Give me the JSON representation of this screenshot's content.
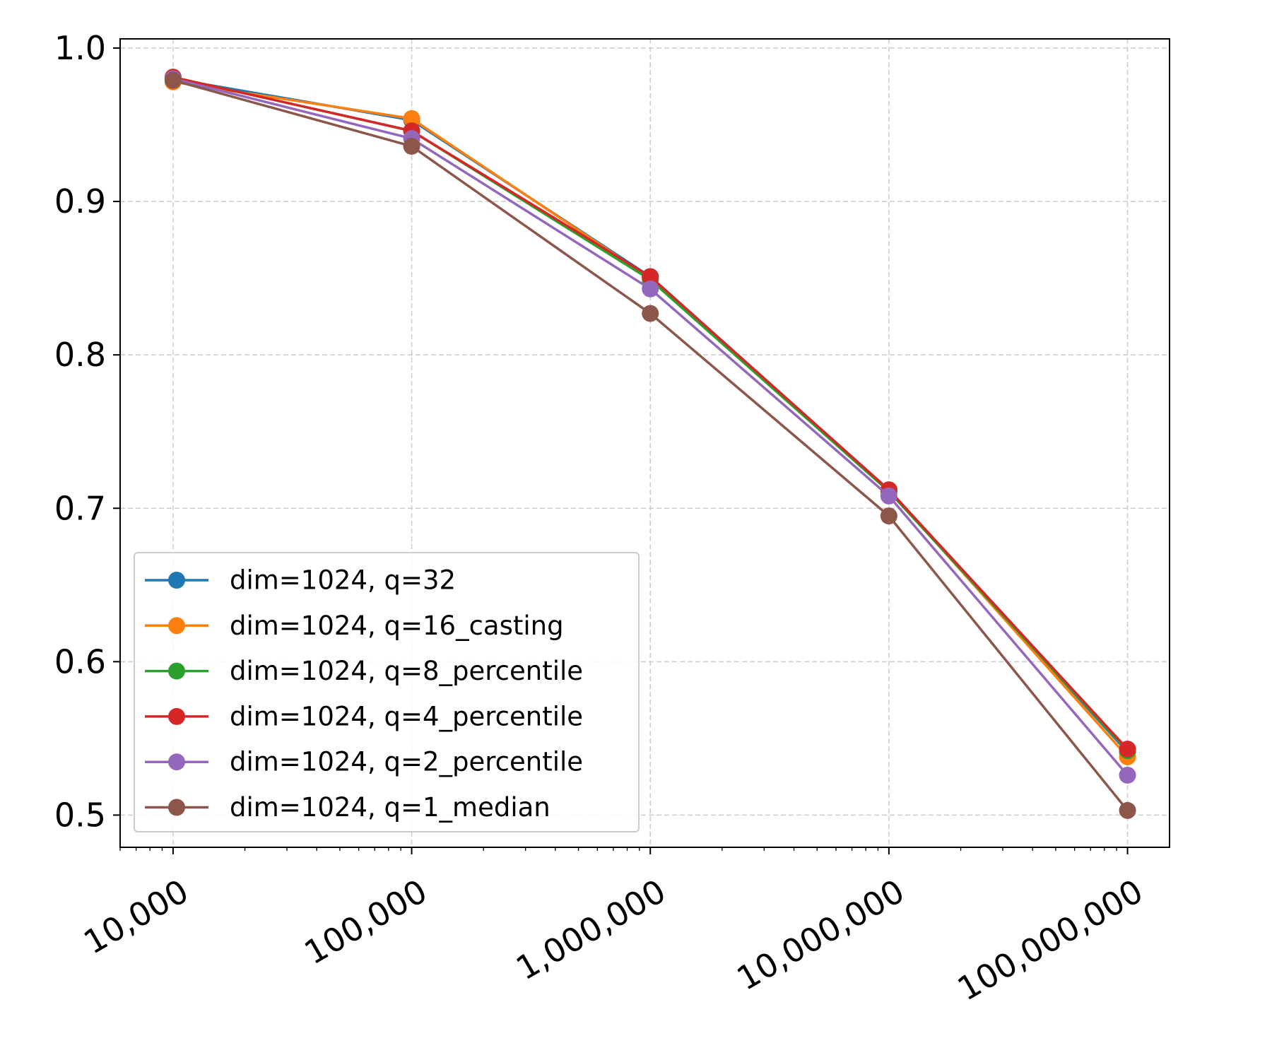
{
  "chart_data": {
    "type": "line",
    "x_scale": "log",
    "x": [
      10000,
      100000,
      1000000,
      10000000,
      100000000
    ],
    "x_tick_labels": [
      "10,000",
      "100,000",
      "1,000,000",
      "10,000,000",
      "100,000,000"
    ],
    "xlim": [
      6000,
      150000000
    ],
    "ylim": [
      0.479,
      1.006
    ],
    "y_ticks": [
      0.5,
      0.6,
      0.7,
      0.8,
      0.9,
      1.0
    ],
    "y_tick_labels": [
      "0.5",
      "0.6",
      "0.7",
      "0.8",
      "0.9",
      "1.0"
    ],
    "grid": true,
    "legend_position": "lower-left",
    "series": [
      {
        "name": "dim=1024, q=32",
        "color": "#1f77b4",
        "values": [
          0.98,
          0.953,
          0.851,
          0.712,
          0.541
        ]
      },
      {
        "name": "dim=1024, q=16_casting",
        "color": "#ff7f0e",
        "values": [
          0.978,
          0.954,
          0.85,
          0.712,
          0.538
        ]
      },
      {
        "name": "dim=1024, q=8_percentile",
        "color": "#2ca02c",
        "values": [
          0.981,
          0.946,
          0.849,
          0.711,
          0.542
        ]
      },
      {
        "name": "dim=1024, q=4_percentile",
        "color": "#d62728",
        "values": [
          0.981,
          0.946,
          0.851,
          0.712,
          0.543
        ]
      },
      {
        "name": "dim=1024, q=2_percentile",
        "color": "#9467bd",
        "values": [
          0.98,
          0.941,
          0.843,
          0.708,
          0.526
        ]
      },
      {
        "name": "dim=1024, q=1_median",
        "color": "#8c564b",
        "values": [
          0.979,
          0.936,
          0.827,
          0.695,
          0.503
        ]
      }
    ]
  }
}
